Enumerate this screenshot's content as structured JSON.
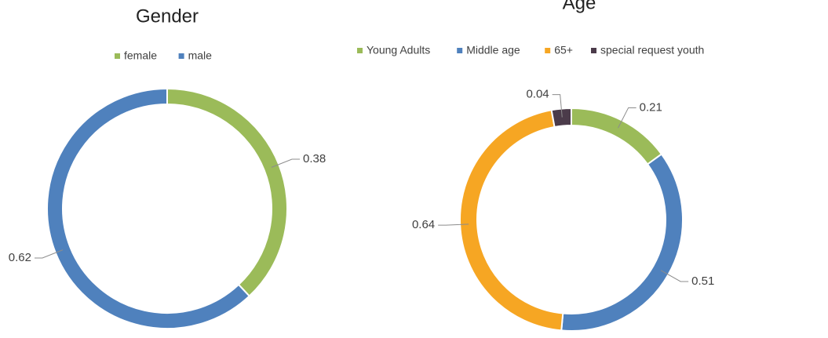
{
  "chart_data": [
    {
      "type": "donut",
      "title": "Gender",
      "categories": [
        "female",
        "male"
      ],
      "values": [
        0.38,
        0.62
      ],
      "colors": [
        "#9bbb59",
        "#4f81bd"
      ]
    },
    {
      "type": "donut",
      "title": "Age",
      "categories": [
        "Young Adults",
        "Middle age",
        "65+",
        "special request youth"
      ],
      "values": [
        0.21,
        0.51,
        0.64,
        0.04
      ],
      "colors": [
        "#9bbb59",
        "#4f81bd",
        "#f6a623",
        "#4b3b4a"
      ]
    }
  ]
}
